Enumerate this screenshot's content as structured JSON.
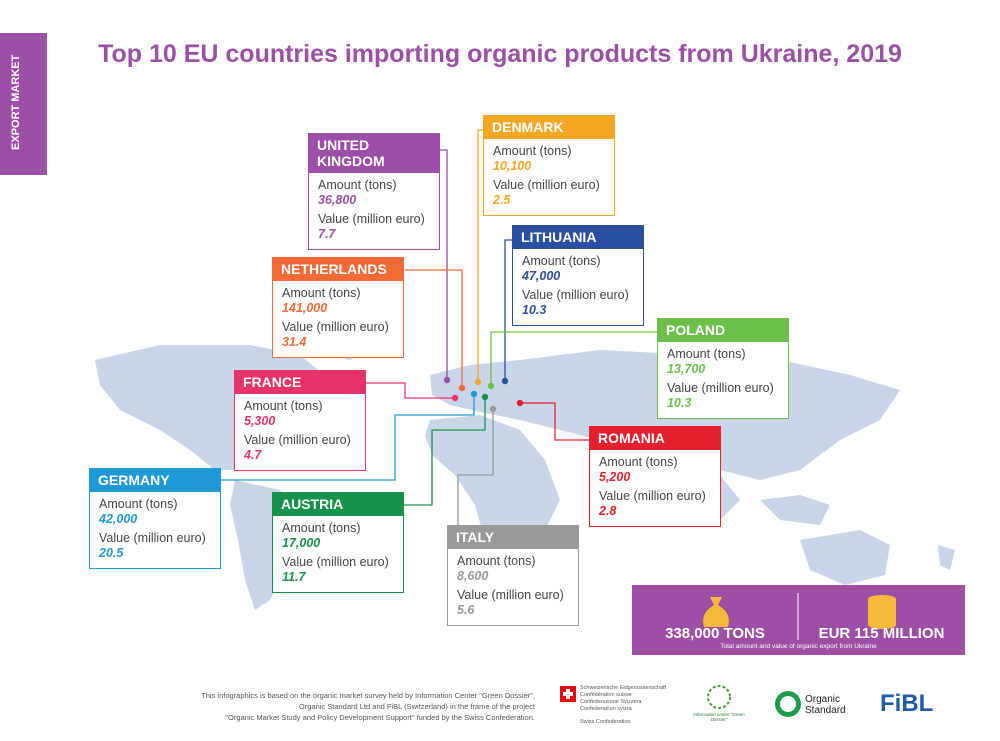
{
  "side_tab": "EXPORT MARKET",
  "title": "Top 10 EU countries importing organic products from Ukraine, 2019",
  "countries": [
    {
      "name": "UNITED KINGDOM",
      "color": "#9b4fa6",
      "amount_label": "Amount (tons)",
      "amount": "36,800",
      "value_label": "Value (million euro)",
      "value": "7.7"
    },
    {
      "name": "DENMARK",
      "color": "#f5a623",
      "amount_label": "Amount (tons)",
      "amount": "10,100",
      "value_label": "Value (million euro)",
      "value": "2.5"
    },
    {
      "name": "LITHUANIA",
      "color": "#2b4fa0",
      "amount_label": "Amount (tons)",
      "amount": "47,000",
      "value_label": "Value (million euro)",
      "value": "10.3"
    },
    {
      "name": "NETHERLANDS",
      "color": "#f26a35",
      "amount_label": "Amount (tons)",
      "amount": "141,000",
      "value_label": "Value (million euro)",
      "value": "31.4"
    },
    {
      "name": "POLAND",
      "color": "#6cc04a",
      "amount_label": "Amount (tons)",
      "amount": "13,700",
      "value_label": "Value (million euro)",
      "value": "10.3"
    },
    {
      "name": "FRANCE",
      "color": "#e8336a",
      "amount_label": "Amount (tons)",
      "amount": "5,300",
      "value_label": "Value (million euro)",
      "value": "4.7"
    },
    {
      "name": "ROMANIA",
      "color": "#e5202e",
      "amount_label": "Amount (tons)",
      "amount": "5,200",
      "value_label": "Value (million euro)",
      "value": "2.8"
    },
    {
      "name": "GERMANY",
      "color": "#1e9bd7",
      "amount_label": "Amount (tons)",
      "amount": "42,000",
      "value_label": "Value (million euro)",
      "value": "20.5"
    },
    {
      "name": "AUSTRIA",
      "color": "#16924a",
      "amount_label": "Amount (tons)",
      "amount": "17,000",
      "value_label": "Value (million euro)",
      "value": "11.7"
    },
    {
      "name": "ITALY",
      "color": "#999999",
      "amount_label": "Amount (tons)",
      "amount": "8,600",
      "value_label": "Value (million euro)",
      "value": "5.6"
    }
  ],
  "totals": {
    "amount": "338,000 TONS",
    "value": "EUR 115 MILLION",
    "caption": "Total amount and value of organic export from Ukraine"
  },
  "footnote": [
    "This infographics is based on the organic market survey held by Information Center \"Green Dossier\",",
    "Organic Standard Ltd and FiBL (Switzerland) in the frame of the project",
    "\"Organic Market Study and Policy Development Support\" funded by the Swiss Confederation."
  ],
  "logos": {
    "swiss": [
      "Schweizerische Eidgenossenschaft",
      "Confédération suisse",
      "Confederazione Svizzera",
      "Confederaziun svizra"
    ],
    "swiss_sub": "Swiss Confederation",
    "green_dossier": "Information center \"Green Dossier\"",
    "organic_standard": "Organic Standard",
    "fibl": "FiBL"
  }
}
